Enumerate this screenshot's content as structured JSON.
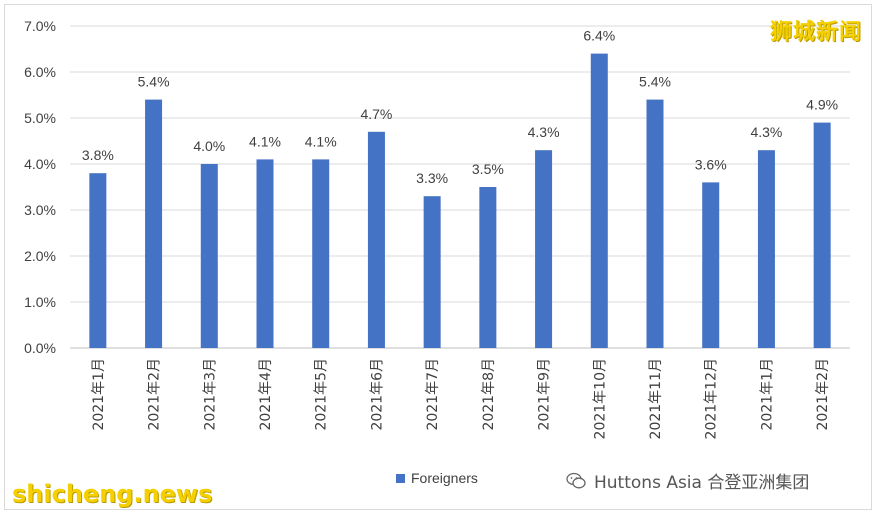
{
  "chart_data": {
    "type": "bar",
    "categories": [
      "2021年1月",
      "2021年2月",
      "2021年3月",
      "2021年4月",
      "2021年5月",
      "2021年6月",
      "2021年7月",
      "2021年8月",
      "2021年9月",
      "2021年10月",
      "2021年11月",
      "2021年12月",
      "2021年1月",
      "2021年2月"
    ],
    "series": [
      {
        "name": "Foreigners",
        "values": [
          3.8,
          5.4,
          4.0,
          4.1,
          4.1,
          4.7,
          3.3,
          3.5,
          4.3,
          6.4,
          5.4,
          3.6,
          4.3,
          4.9
        ]
      }
    ],
    "data_labels": [
      "3.8%",
      "5.4%",
      "4.0%",
      "4.1%",
      "4.1%",
      "4.7%",
      "3.3%",
      "3.5%",
      "4.3%",
      "6.4%",
      "5.4%",
      "3.6%",
      "4.3%",
      "4.9%"
    ],
    "y_ticks": [
      "0.0%",
      "1.0%",
      "2.0%",
      "3.0%",
      "4.0%",
      "5.0%",
      "6.0%",
      "7.0%"
    ],
    "ylim": [
      0,
      7
    ],
    "grid": true,
    "legend_position": "bottom",
    "bar_color": "#4472c4"
  },
  "legend": {
    "label": "Foreigners"
  },
  "watermarks": {
    "top_right": "狮城新闻",
    "bottom_left": "shicheng.news"
  },
  "brand": {
    "text": "Huttons Asia 合登亚洲集团",
    "icon": "wechat-icon"
  }
}
